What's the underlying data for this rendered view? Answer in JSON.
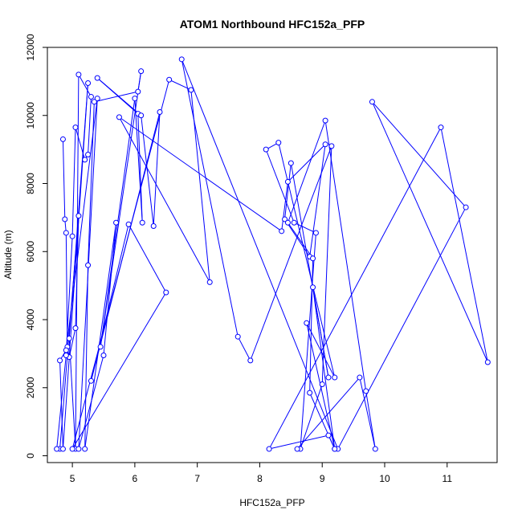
{
  "chart_data": {
    "type": "line",
    "title": "ATOM1 Northbound HFC152a_PFP",
    "xlabel": "HFC152a_PFP",
    "ylabel": "Altitude (m)",
    "xlim": [
      4.6,
      11.8
    ],
    "ylim": [
      -200,
      12000
    ],
    "x_ticks": [
      5,
      6,
      7,
      8,
      9,
      10,
      11
    ],
    "x_tick_labels": [
      "5",
      "6",
      "7",
      "8",
      "9",
      "10",
      "11"
    ],
    "y_ticks": [
      0,
      2000,
      4000,
      6000,
      8000,
      10000,
      12000
    ],
    "y_tick_labels": [
      "0",
      "2000",
      "4000",
      "6000",
      "8000",
      "10000",
      "12000"
    ],
    "grid": false,
    "legend": "none",
    "marker": "open-circle",
    "color": "#0000ff",
    "series": [
      {
        "x": [
          4.85,
          4.88,
          4.9,
          4.92,
          4.95,
          5.05,
          5.1,
          4.8,
          4.75,
          4.9,
          5.0,
          5.05,
          5.2,
          5.25,
          5.3,
          5.1,
          5.05,
          4.95,
          5.25,
          4.85,
          4.8,
          4.9,
          5.4,
          5.1,
          5.5,
          5.7,
          5.2,
          5.25,
          5.35,
          6.05,
          6.1,
          5.45,
          6.0,
          6.12,
          6.05,
          5.4,
          6.1,
          6.3,
          6.4,
          5.3,
          5.9,
          6.5,
          5.0,
          6.55,
          6.9,
          7.2,
          5.75,
          8.35,
          8.45,
          9.05,
          8.8,
          8.4,
          8.5,
          9.1,
          8.85,
          9.2,
          9.1,
          8.15,
          10.9,
          11.65,
          9.8,
          11.3,
          9.25,
          6.75,
          7.65,
          7.85,
          9.15,
          9.0,
          8.65,
          8.9,
          8.55,
          8.1,
          8.3,
          9.2,
          8.75,
          9.2,
          8.8,
          8.85,
          8.45,
          9.05,
          9.7,
          9.85,
          9.6,
          8.6
        ],
        "y": [
          9300,
          6950,
          6550,
          3200,
          2900,
          3750,
          7050,
          200,
          200,
          2950,
          6450,
          9650,
          8700,
          8850,
          10550,
          11200,
          200,
          3450,
          10950,
          200,
          2800,
          3100,
          10500,
          200,
          2950,
          6850,
          200,
          5600,
          10400,
          10700,
          11300,
          3200,
          10500,
          6850,
          10050,
          11100,
          10000,
          6750,
          10100,
          2200,
          6800,
          4800,
          200,
          11050,
          10750,
          5100,
          9950,
          6600,
          8050,
          9150,
          5850,
          6950,
          8600,
          2300,
          4950,
          200,
          600,
          200,
          9650,
          2750,
          10400,
          7300,
          200,
          11650,
          3500,
          2800,
          9100,
          2100,
          200,
          6550,
          6850,
          9000,
          9200,
          2300,
          3900,
          200,
          1850,
          5800,
          6850,
          9850,
          1900,
          200,
          2300,
          200
        ]
      }
    ]
  }
}
